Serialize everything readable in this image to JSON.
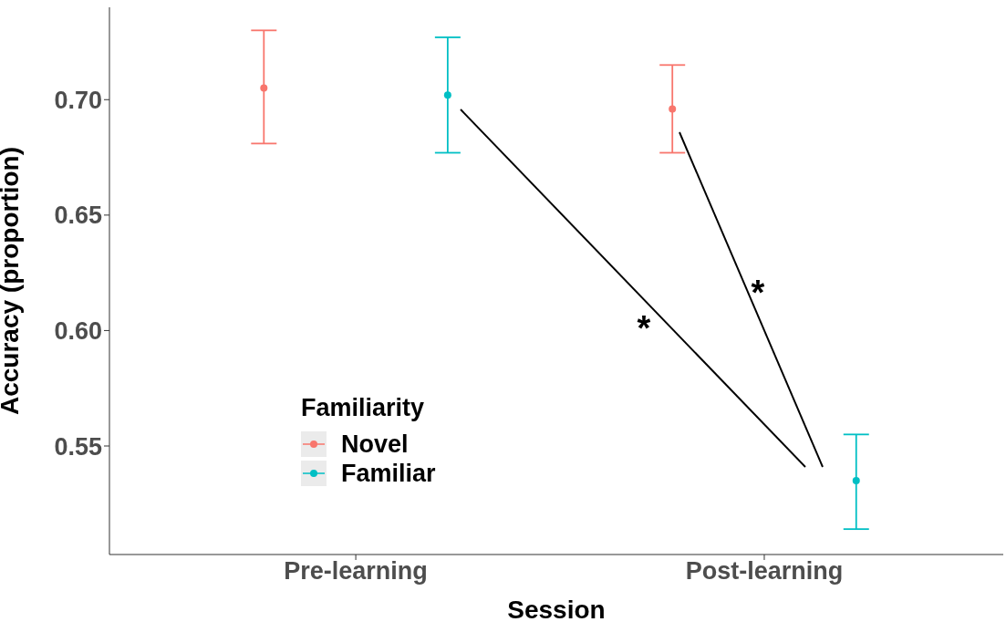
{
  "chart_data": {
    "type": "scatter",
    "xlabel": "Session",
    "ylabel": "Accuracy (proportion)",
    "legend_title": "Familiarity",
    "categories": [
      "Pre-learning",
      "Post-learning"
    ],
    "series": [
      {
        "name": "Novel",
        "color": "#f8766d",
        "values": [
          0.705,
          0.696
        ],
        "errors": [
          [
            0.681,
            0.73
          ],
          [
            0.677,
            0.715
          ]
        ]
      },
      {
        "name": "Familiar",
        "color": "#00bfc4",
        "values": [
          0.702,
          0.535
        ],
        "errors": [
          [
            0.677,
            0.727
          ],
          [
            0.514,
            0.555
          ]
        ]
      }
    ],
    "ylim": [
      0.503,
      0.74
    ],
    "yticks": [
      {
        "value": 0.55,
        "label": "0.55"
      },
      {
        "value": 0.6,
        "label": "0.60"
      },
      {
        "value": 0.65,
        "label": "0.65"
      },
      {
        "value": 0.7,
        "label": "0.70"
      }
    ],
    "annotations": [
      "*",
      "*"
    ],
    "grid": false,
    "legend": "bottom left",
    "marker": "circle"
  }
}
